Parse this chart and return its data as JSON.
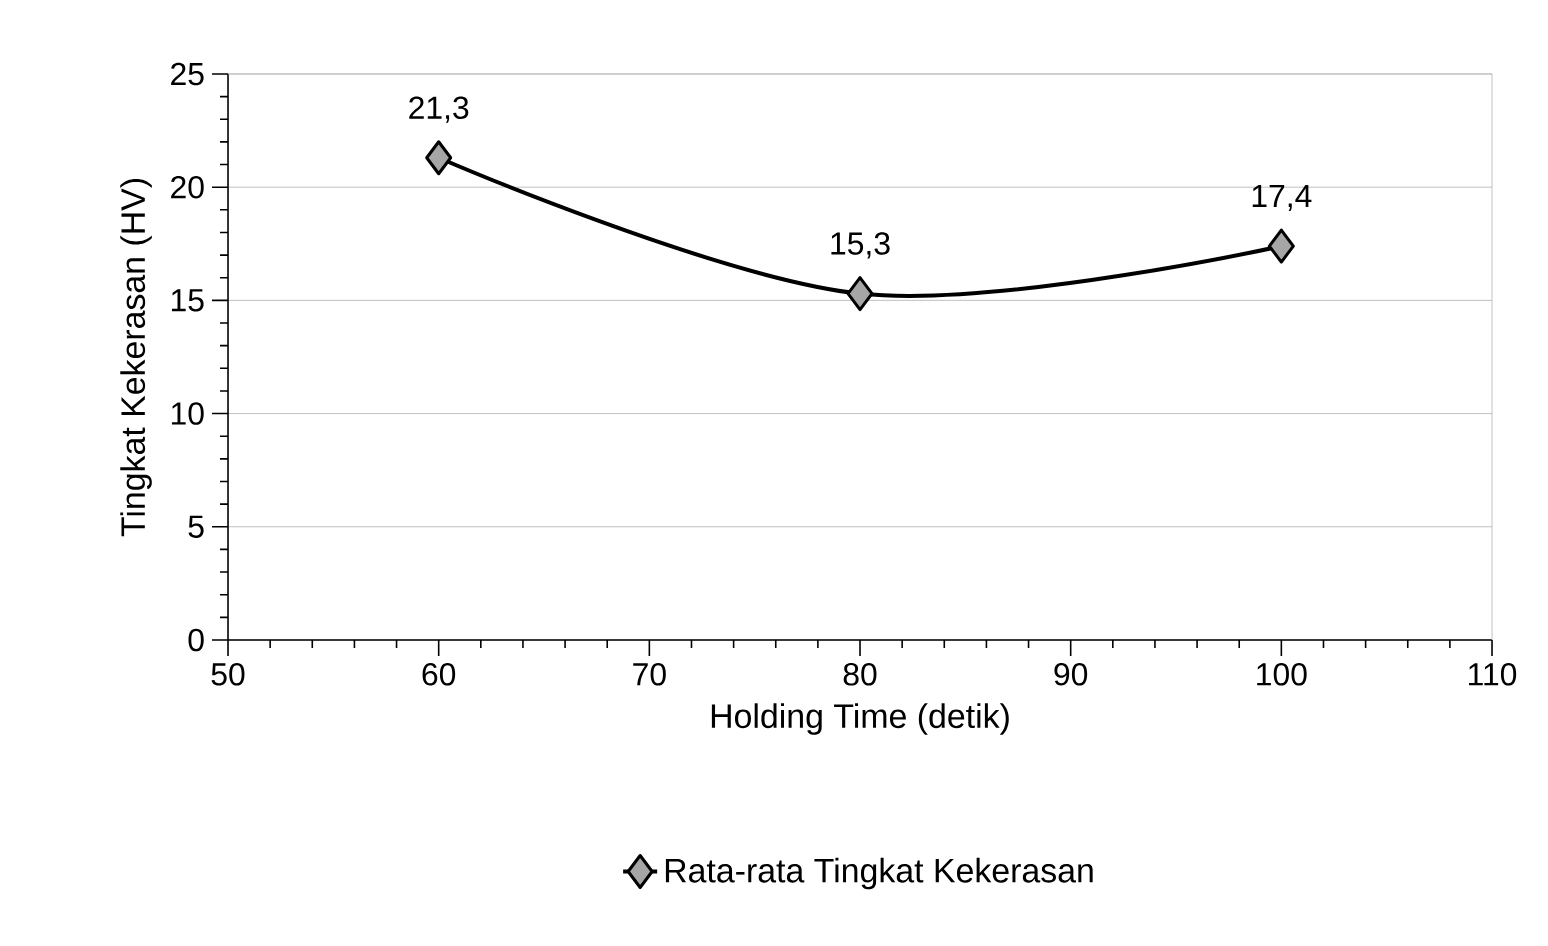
{
  "chart_data": {
    "type": "line",
    "xlabel": "Holding Time (detik)",
    "ylabel": "Tingkat Kekerasan (HV)",
    "x": [
      60,
      80,
      100
    ],
    "series": [
      {
        "name": "Rata-rata Tingkat Kekerasan",
        "color": "#000000",
        "values": [
          21.3,
          15.3,
          17.4
        ],
        "value_labels": [
          "21,3",
          "15,3",
          "17,4"
        ]
      }
    ],
    "xlim": [
      50,
      110
    ],
    "xticks": [
      50,
      60,
      70,
      80,
      90,
      100,
      110
    ],
    "ylim": [
      0,
      25
    ],
    "yticks": [
      0,
      5,
      10,
      15,
      20,
      25
    ],
    "grid": "y",
    "legend": "bottom",
    "marker": "diamond",
    "line_style": "solid"
  }
}
